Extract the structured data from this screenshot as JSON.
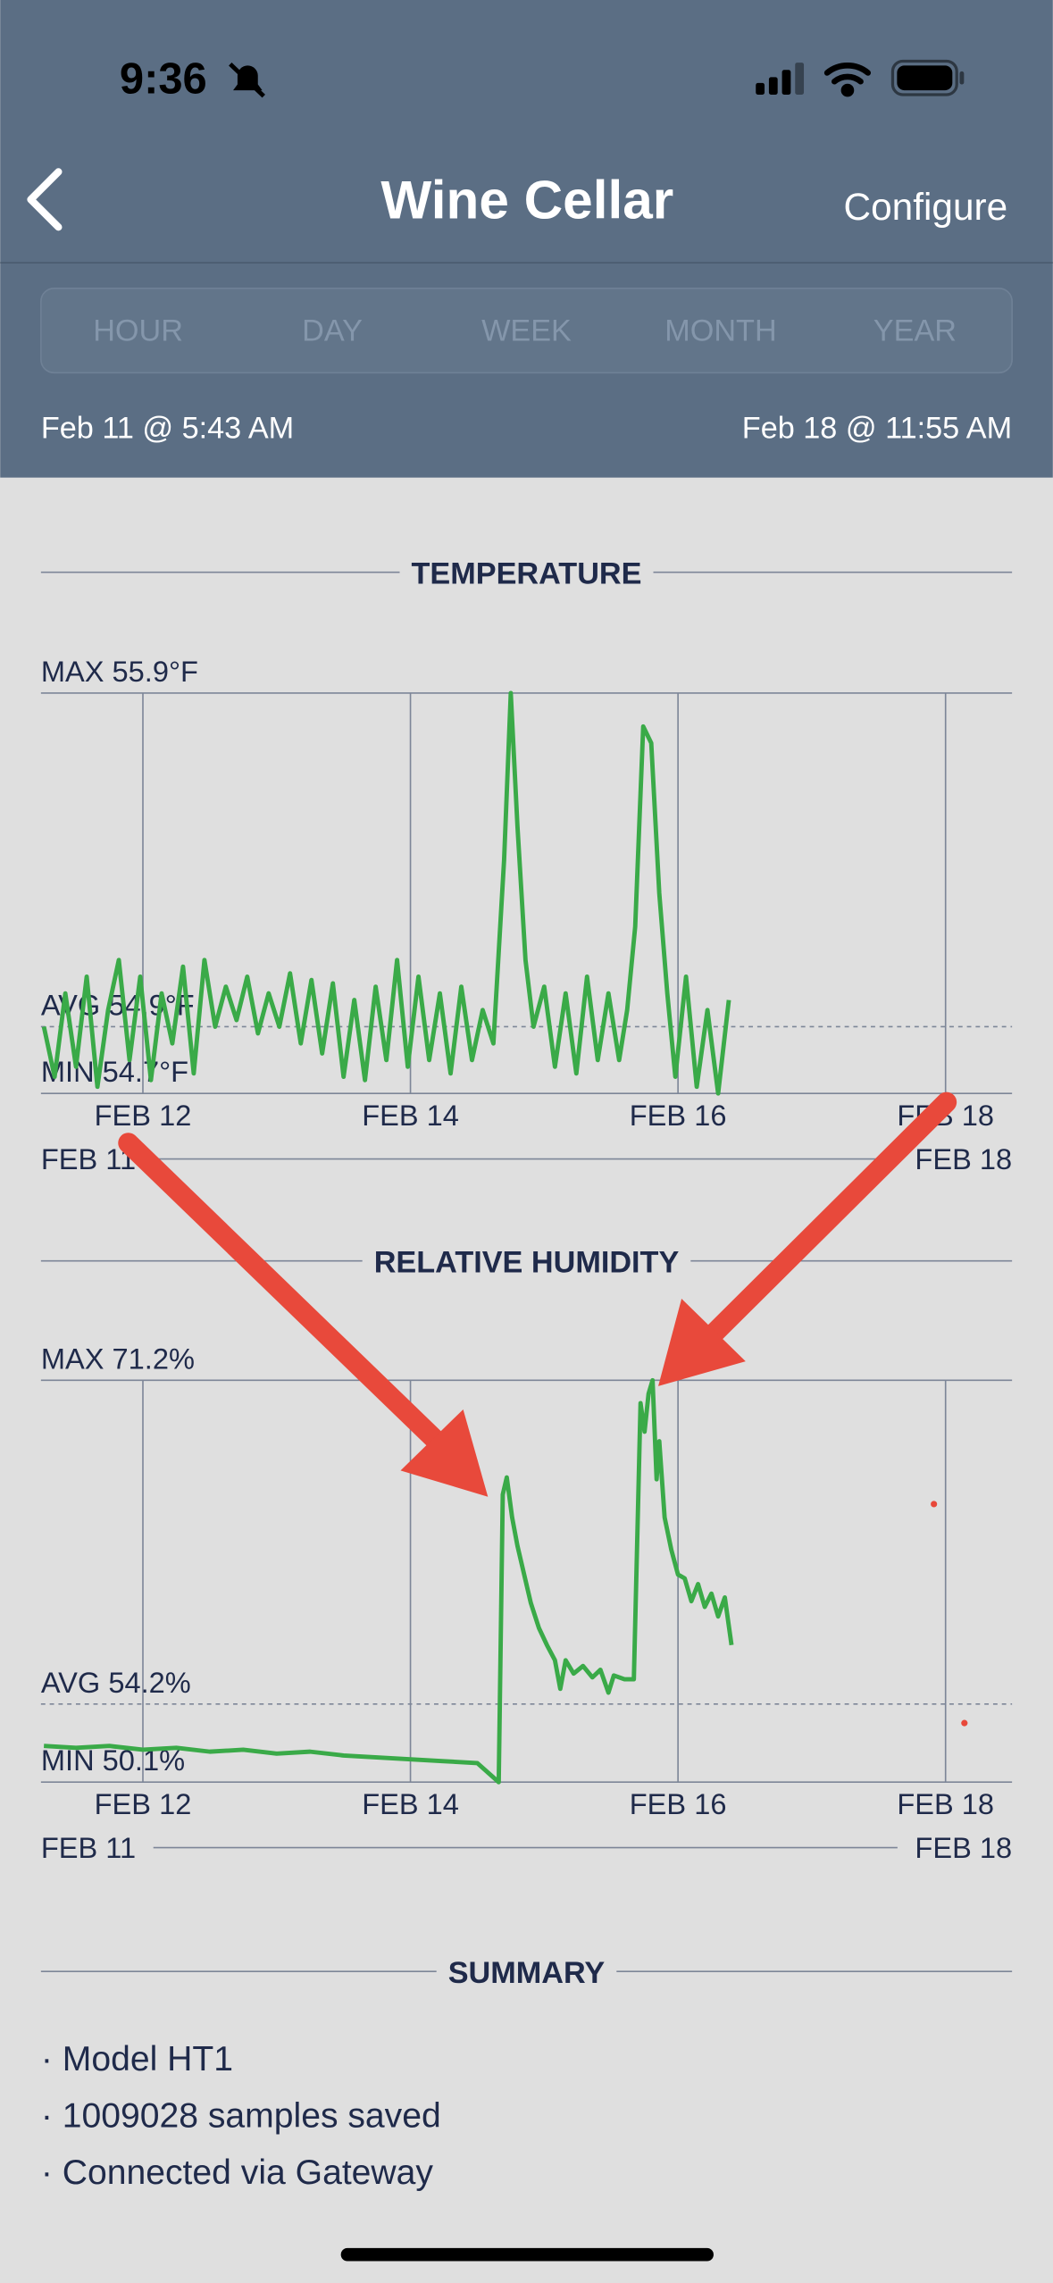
{
  "status_bar": {
    "time": "9:36"
  },
  "nav": {
    "title": "Wine Cellar",
    "action": "Configure"
  },
  "tabs": [
    "HOUR",
    "DAY",
    "WEEK",
    "MONTH",
    "YEAR"
  ],
  "range": {
    "start": "Feb 11 @ 5:43 AM",
    "end": "Feb 18 @ 11:55 AM"
  },
  "charts": [
    {
      "type": "line",
      "title": "TEMPERATURE",
      "xlim": [
        11.238,
        18.497
      ],
      "ylim": [
        54.7,
        55.9
      ],
      "xticks": [
        {
          "value": 12,
          "label": "FEB 12"
        },
        {
          "value": 14,
          "label": "FEB 14"
        },
        {
          "value": 16,
          "label": "FEB 16"
        },
        {
          "value": 18,
          "label": "FEB 18"
        }
      ],
      "range_labels": [
        "FEB 11",
        "FEB 18"
      ],
      "reference_lines": [
        {
          "value": 55.9,
          "label": "MAX 55.9°F"
        },
        {
          "value": 54.9,
          "label": "AVG 54.9°F",
          "dashed": true
        },
        {
          "value": 54.7,
          "label": "MIN 54.7°F"
        }
      ],
      "series": [
        {
          "color": "#3aaa48",
          "style": "line",
          "x": [
            11.26,
            11.34,
            11.42,
            11.5,
            11.58,
            11.66,
            11.74,
            11.82,
            11.9,
            11.98,
            12.06,
            12.14,
            12.22,
            12.3,
            12.38,
            12.46,
            12.54,
            12.62,
            12.7,
            12.78,
            12.86,
            12.94,
            13.02,
            13.1,
            13.18,
            13.26,
            13.34,
            13.42,
            13.5,
            13.58,
            13.66,
            13.74,
            13.82,
            13.9,
            13.98,
            14.06,
            14.14,
            14.22,
            14.3,
            14.38,
            14.46,
            14.54,
            14.62,
            14.7,
            14.75,
            14.8,
            14.86,
            14.92,
            15.0,
            15.08,
            15.16,
            15.24,
            15.32,
            15.4,
            15.48,
            15.56,
            15.62,
            15.68,
            15.74,
            15.8,
            15.86,
            15.92,
            15.98,
            16.06,
            16.14,
            16.22,
            16.3,
            16.38
          ],
          "values": [
            54.9,
            54.75,
            55.0,
            54.78,
            55.05,
            54.72,
            54.95,
            55.1,
            54.8,
            55.05,
            54.74,
            55.0,
            54.85,
            55.08,
            54.76,
            55.1,
            54.9,
            55.02,
            54.92,
            55.05,
            54.88,
            55.0,
            54.9,
            55.06,
            54.85,
            55.04,
            54.82,
            55.03,
            54.75,
            54.98,
            54.74,
            55.02,
            54.8,
            55.1,
            54.78,
            55.05,
            54.8,
            55.0,
            54.76,
            55.02,
            54.8,
            54.95,
            54.85,
            55.4,
            55.9,
            55.5,
            55.1,
            54.9,
            55.02,
            54.78,
            55.0,
            54.76,
            55.05,
            54.8,
            55.0,
            54.8,
            54.95,
            55.2,
            55.8,
            55.75,
            55.3,
            55.0,
            54.75,
            55.05,
            54.72,
            54.95,
            54.7,
            54.98
          ]
        }
      ]
    },
    {
      "type": "line",
      "title": "RELATIVE HUMIDITY",
      "xlim": [
        11.238,
        18.497
      ],
      "ylim": [
        50.1,
        71.2
      ],
      "xticks": [
        {
          "value": 12,
          "label": "FEB 12"
        },
        {
          "value": 14,
          "label": "FEB 14"
        },
        {
          "value": 16,
          "label": "FEB 16"
        },
        {
          "value": 18,
          "label": "FEB 18"
        }
      ],
      "range_labels": [
        "FEB 11",
        "FEB 18"
      ],
      "reference_lines": [
        {
          "value": 71.2,
          "label": "MAX 71.2%"
        },
        {
          "value": 54.2,
          "label": "AVG 54.2%",
          "dashed": true
        },
        {
          "value": 50.1,
          "label": "MIN 50.1%"
        }
      ],
      "series": [
        {
          "color": "#3aaa48",
          "style": "line",
          "x": [
            11.26,
            11.5,
            11.75,
            12.0,
            12.25,
            12.5,
            12.75,
            13.0,
            13.25,
            13.5,
            13.75,
            14.0,
            14.25,
            14.5,
            14.66,
            14.69,
            14.72,
            14.76,
            14.8,
            14.85,
            14.9,
            14.96,
            15.02,
            15.08,
            15.12,
            15.16,
            15.22,
            15.29,
            15.36,
            15.42,
            15.48,
            15.52,
            15.6,
            15.67,
            15.72,
            15.75,
            15.78,
            15.81,
            15.84,
            15.86,
            15.9,
            15.95,
            16.0,
            16.05,
            16.1,
            16.15,
            16.2,
            16.25,
            16.3,
            16.35,
            16.4
          ],
          "values": [
            52.0,
            51.9,
            52.0,
            51.8,
            51.9,
            51.7,
            51.8,
            51.6,
            51.7,
            51.5,
            51.4,
            51.3,
            51.2,
            51.1,
            50.1,
            65.2,
            66.1,
            64.0,
            62.5,
            61.0,
            59.5,
            58.2,
            57.3,
            56.5,
            55.0,
            56.5,
            55.8,
            56.2,
            55.6,
            56.0,
            54.8,
            55.7,
            55.5,
            55.5,
            70.0,
            68.5,
            70.5,
            71.2,
            66.0,
            68.0,
            64.0,
            62.3,
            61.0,
            60.8,
            59.6,
            60.5,
            59.3,
            60.0,
            58.8,
            59.8,
            57.3
          ]
        },
        {
          "color": "#e8483a",
          "style": "points",
          "x": [
            17.913,
            18.141
          ],
          "values": [
            64.7,
            53.2
          ]
        }
      ]
    }
  ],
  "summary": {
    "title": "SUMMARY",
    "items": [
      "· Model HT1",
      "· 1009028 samples saved",
      "· Connected via Gateway"
    ]
  }
}
